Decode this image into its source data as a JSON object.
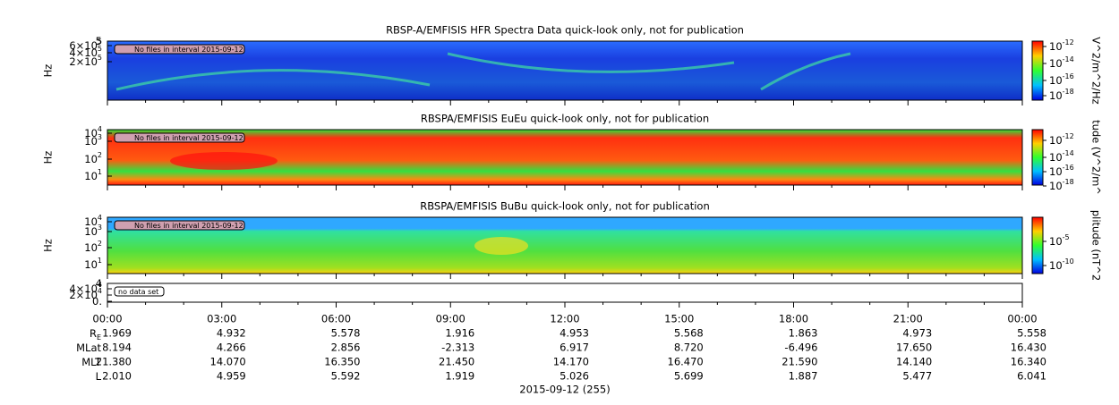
{
  "panels": [
    {
      "title": "RBSP-A/EMFISIS  HFR Spectra Data quick-look only, not for publication",
      "ylabel": "Hz",
      "yticks": [
        {
          "mant": "5",
          "exp": ""
        },
        {
          "mant": "6×10",
          "exp": "5"
        },
        {
          "mant": "4×10",
          "exp": "5"
        },
        {
          "mant": "2×10",
          "exp": "5"
        }
      ],
      "note": "No files in interval 2015-09-12",
      "colorbar_label": "V^2/m^2/Hz",
      "colorbar_ticks": [
        {
          "mant": "10",
          "exp": "-12"
        },
        {
          "mant": "10",
          "exp": "-14"
        },
        {
          "mant": "10",
          "exp": "-16"
        },
        {
          "mant": "10",
          "exp": "-18"
        }
      ]
    },
    {
      "title": "RBSPA/EMFISIS  EuEu quick-look only, not for publication",
      "ylabel": "Hz",
      "yticks": [
        {
          "mant": "10",
          "exp": "4"
        },
        {
          "mant": "10",
          "exp": "3"
        },
        {
          "mant": "10",
          "exp": "2"
        },
        {
          "mant": "10",
          "exp": "1"
        }
      ],
      "note": "No files in interval 2015-09-12",
      "colorbar_label": "tude (V^2/m^",
      "colorbar_ticks": [
        {
          "mant": "10",
          "exp": "-12"
        },
        {
          "mant": "10",
          "exp": "-14"
        },
        {
          "mant": "10",
          "exp": "-16"
        },
        {
          "mant": "10",
          "exp": "-18"
        }
      ]
    },
    {
      "title": "RBSPA/EMFISIS  BuBu quick-look only, not for publication",
      "ylabel": "Hz",
      "yticks": [
        {
          "mant": "10",
          "exp": "4"
        },
        {
          "mant": "10",
          "exp": "3"
        },
        {
          "mant": "10",
          "exp": "2"
        },
        {
          "mant": "10",
          "exp": "1"
        }
      ],
      "note": "No files in interval 2015-09-12",
      "colorbar_label": "plitude (nT^2",
      "colorbar_ticks": [
        {
          "mant": "10",
          "exp": "-5"
        },
        {
          "mant": "10",
          "exp": "-10"
        }
      ]
    },
    {
      "yticks": [
        {
          "mant": "4",
          "exp": ""
        },
        {
          "mant": "4×10",
          "exp": "4"
        },
        {
          "mant": "2×10",
          "exp": "4"
        },
        {
          "mant": "0.",
          "exp": ""
        }
      ],
      "note": "no data set"
    }
  ],
  "time_labels": [
    "00:00",
    "03:00",
    "06:00",
    "09:00",
    "12:00",
    "15:00",
    "18:00",
    "21:00",
    "00:00"
  ],
  "ephemeris": [
    {
      "label": {
        "base": "R",
        "sub": "E"
      },
      "values": [
        "1.969",
        "4.932",
        "5.578",
        "1.916",
        "4.953",
        "5.568",
        "1.863",
        "4.973",
        "5.558"
      ]
    },
    {
      "label": {
        "base": "MLat",
        "sub": ""
      },
      "values": [
        "8.194",
        "4.266",
        "2.856",
        "-2.313",
        "6.917",
        "8.720",
        "-6.496",
        "17.650",
        "16.430"
      ]
    },
    {
      "label": {
        "base": "MLT",
        "sub": ""
      },
      "values": [
        "21.380",
        "14.070",
        "16.350",
        "21.450",
        "14.170",
        "16.470",
        "21.590",
        "14.140",
        "16.340"
      ]
    },
    {
      "label": {
        "base": "L",
        "sub": ""
      },
      "values": [
        "2.010",
        "4.959",
        "5.592",
        "1.919",
        "5.026",
        "5.699",
        "1.887",
        "5.477",
        "6.041"
      ]
    }
  ],
  "date": "2015-09-12 (255)"
}
